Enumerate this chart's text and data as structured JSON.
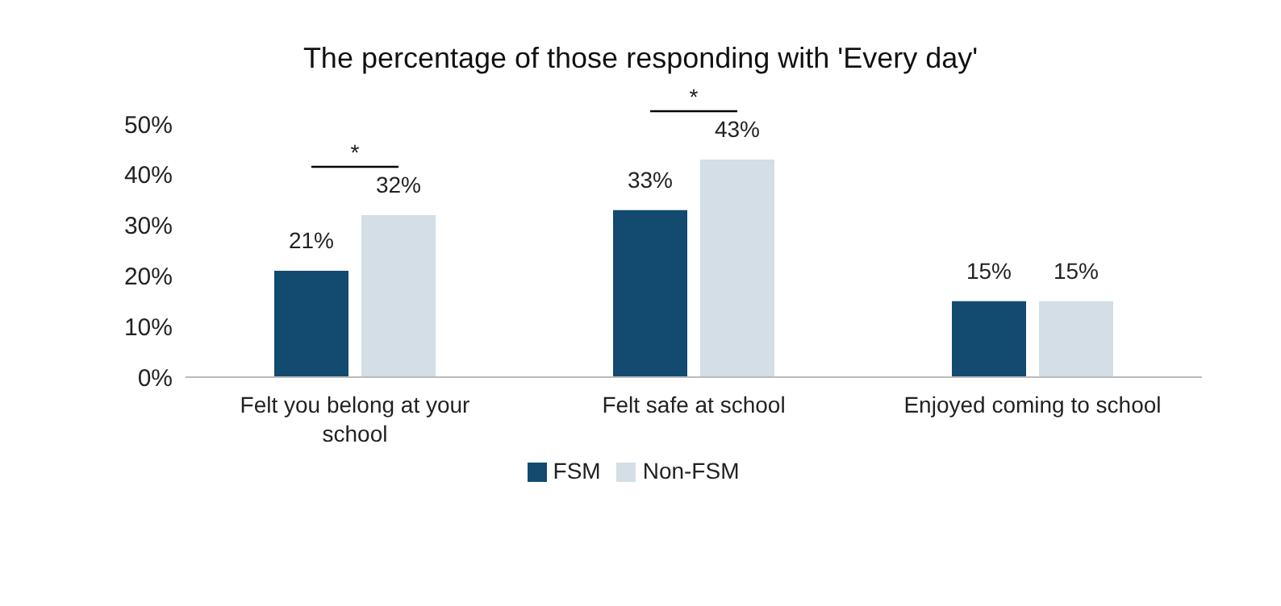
{
  "chart_data": {
    "type": "bar",
    "title": "The percentage of those responding with 'Every day'",
    "categories": [
      "Felt you belong at your school",
      "Felt safe at school",
      "Enjoyed coming to school"
    ],
    "series": [
      {
        "name": "FSM",
        "color": "#124a70",
        "values": [
          21,
          33,
          15
        ],
        "value_labels": [
          "21%",
          "33%",
          "15%"
        ]
      },
      {
        "name": "Non-FSM",
        "color": "#d3dee6",
        "values": [
          32,
          43,
          15
        ],
        "value_labels": [
          "32%",
          "43%",
          "15%"
        ]
      }
    ],
    "ylim": [
      0,
      50
    ],
    "yticks": [
      {
        "value": 0,
        "label": "0%"
      },
      {
        "value": 10,
        "label": "10%"
      },
      {
        "value": 20,
        "label": "20%"
      },
      {
        "value": 30,
        "label": "30%"
      },
      {
        "value": 40,
        "label": "40%"
      },
      {
        "value": 50,
        "label": "50%"
      }
    ],
    "annotations": [
      "*",
      "*"
    ],
    "grid": false,
    "legend": "bottom"
  }
}
